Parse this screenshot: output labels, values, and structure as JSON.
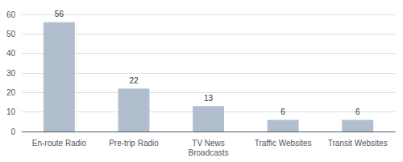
{
  "chart_data": {
    "type": "bar",
    "categories": [
      "En-route Radio",
      "Pre-trip Radio",
      "TV News\nBroadcasts",
      "Traffic Websites",
      "Transit Websites"
    ],
    "values": [
      56,
      22,
      13,
      6,
      6
    ],
    "color": "#b0bece",
    "ylim": [
      0,
      60
    ],
    "yticks": [
      0,
      10,
      20,
      30,
      40,
      50,
      60
    ],
    "grid": true,
    "data_labels": true
  }
}
